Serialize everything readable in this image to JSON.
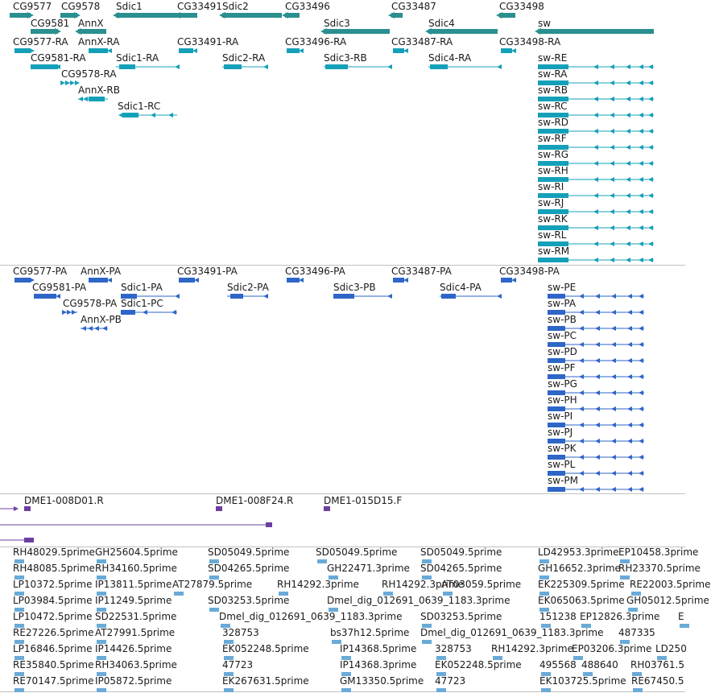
{
  "colors": {
    "gene_track": "#2a8f8f",
    "transcript_track": "#14a0b8",
    "protein_track": "#2e66c8",
    "clone_track": "#6b3fa0",
    "est_track": "#6aaad8"
  },
  "tracks": {
    "genes": [
      {
        "name": "CG9577"
      },
      {
        "name": "CG9578"
      },
      {
        "name": "Sdic1"
      },
      {
        "name": "CG33491"
      },
      {
        "name": "Sdic2"
      },
      {
        "name": "CG33496"
      },
      {
        "name": "CG33487"
      },
      {
        "name": "CG33498"
      },
      {
        "name": "CG9581"
      },
      {
        "name": "AnnX"
      },
      {
        "name": "Sdic3"
      },
      {
        "name": "Sdic4"
      },
      {
        "name": "sw"
      }
    ],
    "transcripts": [
      {
        "name": "CG9577-RA"
      },
      {
        "name": "AnnX-RA"
      },
      {
        "name": "CG33491-RA"
      },
      {
        "name": "CG33496-RA"
      },
      {
        "name": "CG33487-RA"
      },
      {
        "name": "CG33498-RA"
      },
      {
        "name": "CG9581-RA"
      },
      {
        "name": "Sdic1-RA"
      },
      {
        "name": "Sdic2-RA"
      },
      {
        "name": "Sdic3-RB"
      },
      {
        "name": "Sdic4-RA"
      },
      {
        "name": "CG9578-RA"
      },
      {
        "name": "AnnX-RB"
      },
      {
        "name": "Sdic1-RC"
      },
      {
        "name": "sw-RE"
      },
      {
        "name": "sw-RA"
      },
      {
        "name": "sw-RB"
      },
      {
        "name": "sw-RC"
      },
      {
        "name": "sw-RD"
      },
      {
        "name": "sw-RF"
      },
      {
        "name": "sw-RG"
      },
      {
        "name": "sw-RH"
      },
      {
        "name": "sw-RI"
      },
      {
        "name": "sw-RJ"
      },
      {
        "name": "sw-RK"
      },
      {
        "name": "sw-RL"
      },
      {
        "name": "sw-RM"
      }
    ],
    "proteins": [
      {
        "name": "CG9577-PA"
      },
      {
        "name": "AnnX-PA"
      },
      {
        "name": "CG33491-PA"
      },
      {
        "name": "CG33496-PA"
      },
      {
        "name": "CG33487-PA"
      },
      {
        "name": "CG33498-PA"
      },
      {
        "name": "CG9581-PA"
      },
      {
        "name": "Sdic1-PA"
      },
      {
        "name": "Sdic2-PA"
      },
      {
        "name": "Sdic3-PB"
      },
      {
        "name": "Sdic4-PA"
      },
      {
        "name": "CG9578-PA"
      },
      {
        "name": "Sdic1-PC"
      },
      {
        "name": "AnnX-PB"
      },
      {
        "name": "sw-PE"
      },
      {
        "name": "sw-PA"
      },
      {
        "name": "sw-PB"
      },
      {
        "name": "sw-PC"
      },
      {
        "name": "sw-PD"
      },
      {
        "name": "sw-PF"
      },
      {
        "name": "sw-PG"
      },
      {
        "name": "sw-PH"
      },
      {
        "name": "sw-PI"
      },
      {
        "name": "sw-PJ"
      },
      {
        "name": "sw-PK"
      },
      {
        "name": "sw-PL"
      },
      {
        "name": "sw-PM"
      }
    ],
    "clones": [
      {
        "name": "DME1-008D01.R"
      },
      {
        "name": "DME1-008F24.R"
      },
      {
        "name": "DME1-015D15.F"
      }
    ],
    "ests": [
      {
        "name": "RH48029.5prime"
      },
      {
        "name": "GH25604.5prime"
      },
      {
        "name": "SD05049.5prime"
      },
      {
        "name": "SD05049.5prime"
      },
      {
        "name": "SD05049.5prime"
      },
      {
        "name": "LD42953.3prime"
      },
      {
        "name": "EP10458.3prime"
      },
      {
        "name": "RH48085.5prime"
      },
      {
        "name": "RH34160.5prime"
      },
      {
        "name": "SD04265.5prime"
      },
      {
        "name": "GH22471.3prime"
      },
      {
        "name": "SD04265.5prime"
      },
      {
        "name": "GH16652.3prime"
      },
      {
        "name": "RH23370.5prime"
      },
      {
        "name": "LP10372.5prime"
      },
      {
        "name": "IP13811.5prime"
      },
      {
        "name": "AT27879.5prime"
      },
      {
        "name": "RH14292.3prime"
      },
      {
        "name": "RH14292.3prime"
      },
      {
        "name": "AT03059.5prime"
      },
      {
        "name": "EK225309.5prime"
      },
      {
        "name": "RE22003.5prime"
      },
      {
        "name": "LP03984.5prime"
      },
      {
        "name": "IP11249.5prime"
      },
      {
        "name": "SD03253.5prime"
      },
      {
        "name": "Dmel_dig_012691_0639_1183.3prime"
      },
      {
        "name": "EK065063.5prime"
      },
      {
        "name": "GH05012.5prime"
      },
      {
        "name": "LP10472.5prime"
      },
      {
        "name": "SD22531.5prime"
      },
      {
        "name": "Dmel_dig_012691_0639_1183.3prime"
      },
      {
        "name": "SD03253.5prime"
      },
      {
        "name": "151238"
      },
      {
        "name": "EP12826.3prime"
      },
      {
        "name": "E"
      },
      {
        "name": "RE27226.5prime"
      },
      {
        "name": "AT27991.5prime"
      },
      {
        "name": "328753"
      },
      {
        "name": "bs37h12.5prime"
      },
      {
        "name": "Dmel_dig_012691_0639_1183.3prime"
      },
      {
        "name": "487335"
      },
      {
        "name": "LP16846.5prime"
      },
      {
        "name": "IP14426.5prime"
      },
      {
        "name": "EK052248.5prime"
      },
      {
        "name": "IP14368.5prime"
      },
      {
        "name": "328753"
      },
      {
        "name": "RH14292.3prime"
      },
      {
        "name": "EP03206.3prime"
      },
      {
        "name": "LD250"
      },
      {
        "name": "RE35840.5prime"
      },
      {
        "name": "RH34063.5prime"
      },
      {
        "name": "47723"
      },
      {
        "name": "IP14368.3prime"
      },
      {
        "name": "EK052248.5prime"
      },
      {
        "name": "495568"
      },
      {
        "name": "488640"
      },
      {
        "name": "RH03761.5"
      },
      {
        "name": "RE70147.5prime"
      },
      {
        "name": "IP05872.5prime"
      },
      {
        "name": "EK267631.5prime"
      },
      {
        "name": "GM13350.5prime"
      },
      {
        "name": "47723"
      },
      {
        "name": "EK103725.5prime"
      },
      {
        "name": "RE67450.5"
      }
    ]
  }
}
